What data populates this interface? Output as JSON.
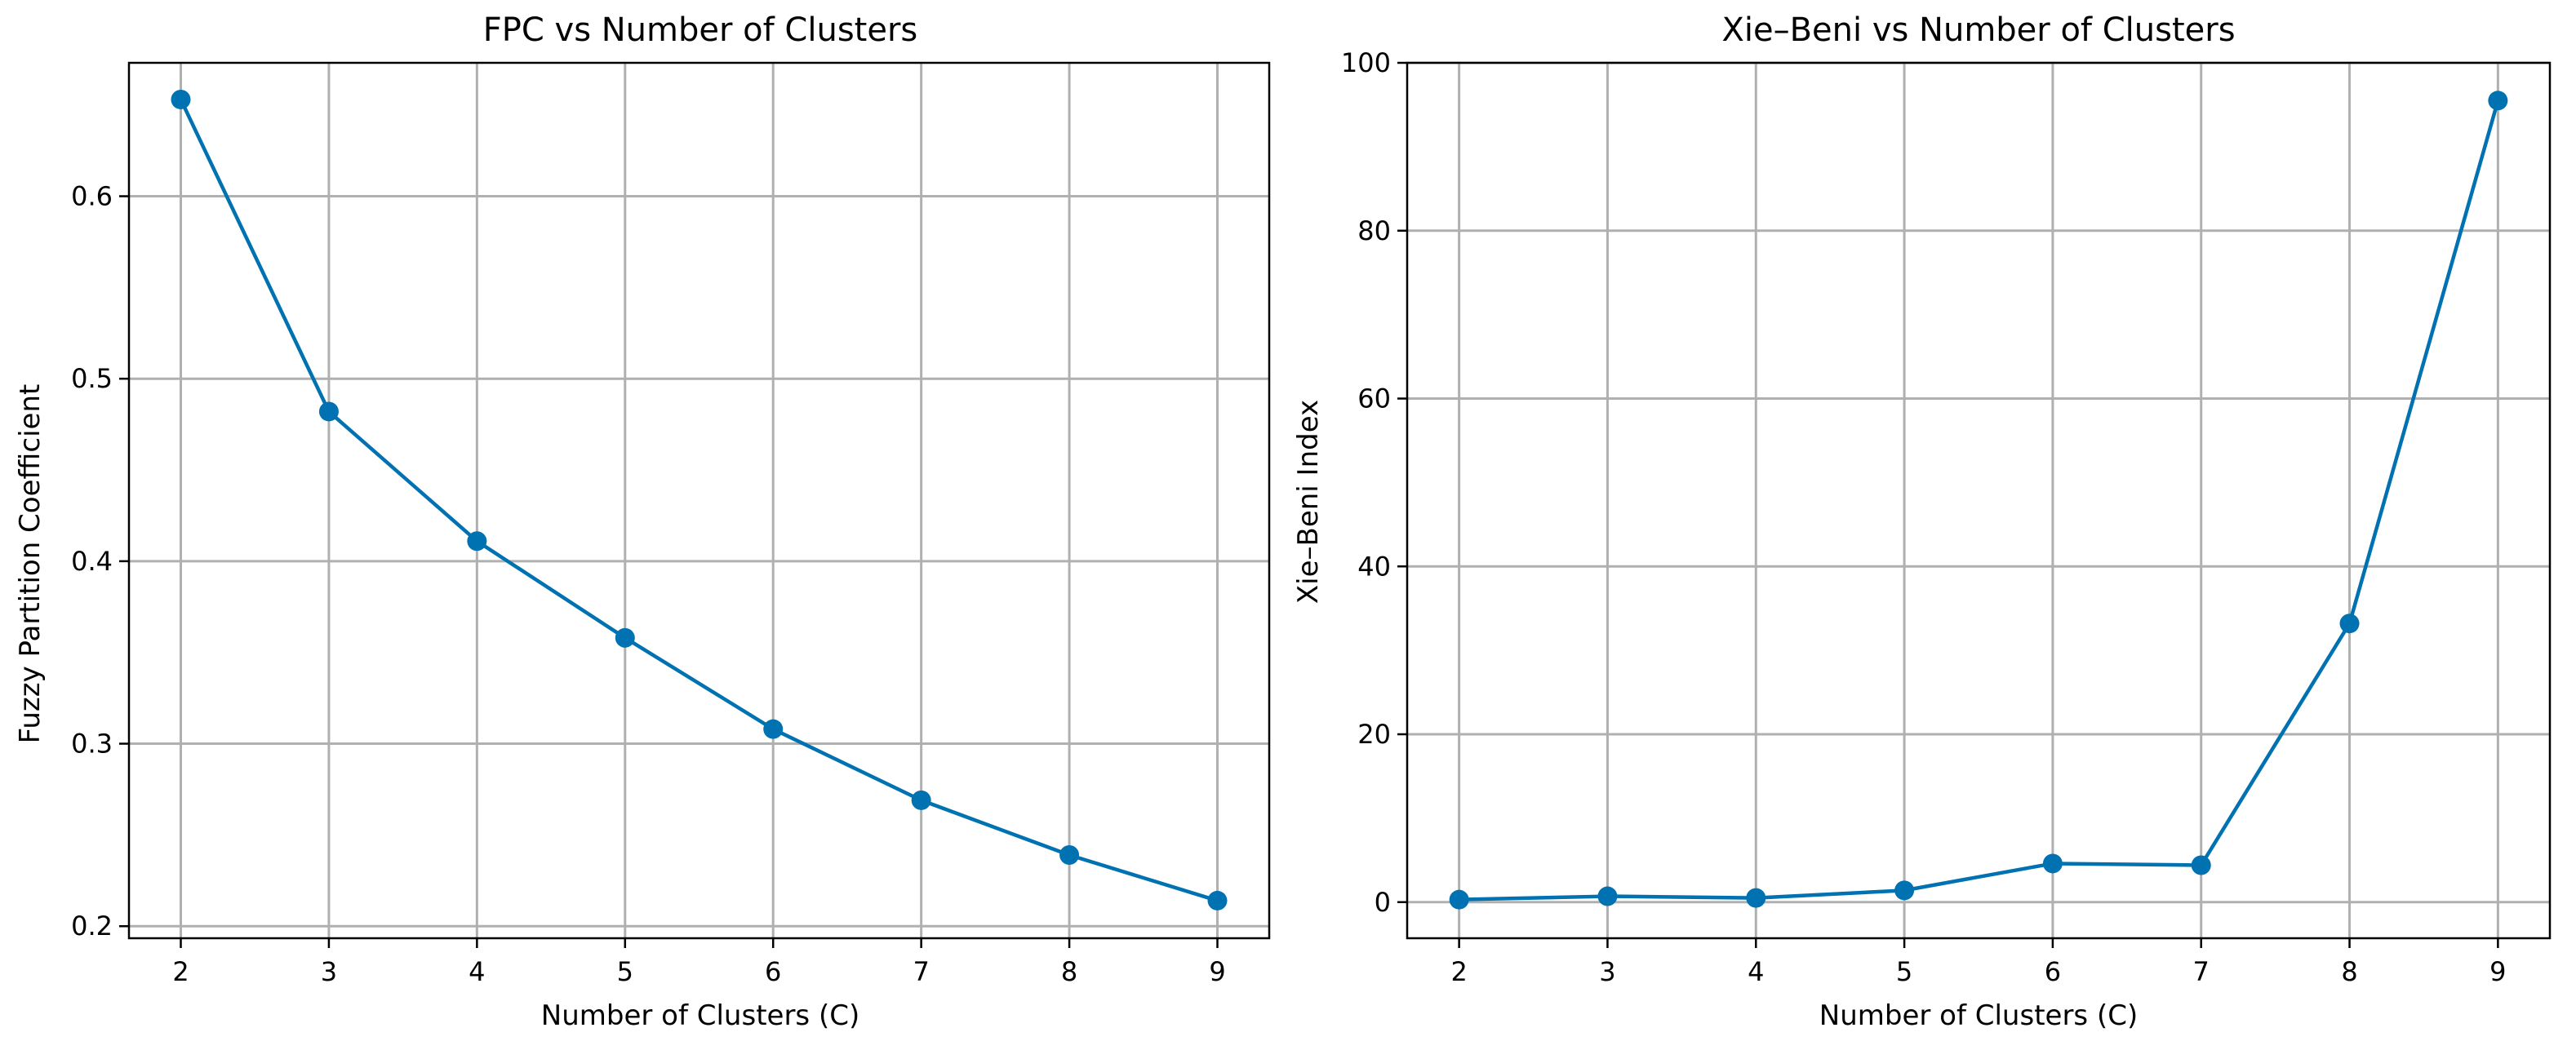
{
  "colors": {
    "series": "#0072b2",
    "grid": "#b0b0b0",
    "axes": "#000000",
    "background": "#ffffff"
  },
  "chart_data": [
    {
      "type": "line",
      "title": "FPC vs Number of Clusters",
      "xlabel": "Number of Clusters (C)",
      "ylabel": "Fuzzy Partition Coefficient",
      "x": [
        2,
        3,
        4,
        5,
        6,
        7,
        8,
        9
      ],
      "series": [
        {
          "values": [
            0.653,
            0.482,
            0.411,
            0.358,
            0.308,
            0.269,
            0.239,
            0.214
          ]
        }
      ],
      "xticks": [
        2,
        3,
        4,
        5,
        6,
        7,
        8,
        9
      ],
      "yticks": [
        0.2,
        0.3,
        0.4,
        0.5,
        0.6
      ],
      "ytick_labels": [
        "0.2",
        "0.3",
        "0.4",
        "0.5",
        "0.6"
      ],
      "xlim": [
        1.65,
        9.35
      ],
      "ylim": [
        0.1934,
        0.6731
      ],
      "grid": true,
      "marker": "circle"
    },
    {
      "type": "line",
      "title": "Xie–Beni vs Number of Clusters",
      "xlabel": "Number of Clusters (C)",
      "ylabel": "Xie–Beni Index",
      "x": [
        2,
        3,
        4,
        5,
        6,
        7,
        8,
        9
      ],
      "series": [
        {
          "values": [
            0.3,
            0.7,
            0.5,
            1.4,
            4.6,
            4.4,
            33.2,
            95.5
          ]
        }
      ],
      "xticks": [
        2,
        3,
        4,
        5,
        6,
        7,
        8,
        9
      ],
      "yticks": [
        0,
        20,
        40,
        60,
        80,
        100
      ],
      "ytick_labels": [
        "0",
        "20",
        "40",
        "60",
        "80",
        "100"
      ],
      "xlim": [
        1.65,
        9.35
      ],
      "ylim": [
        -4.3,
        100
      ],
      "grid": true,
      "marker": "circle"
    }
  ]
}
